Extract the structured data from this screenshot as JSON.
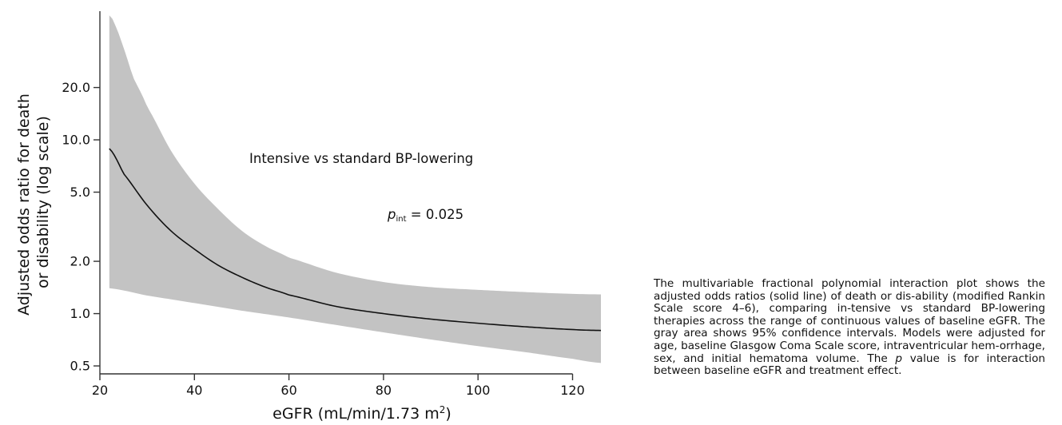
{
  "chart_data": {
    "type": "line",
    "title": "",
    "xlabel": "eGFR (mL/min/1.73 m",
    "xlabel_sup": "2",
    "xlabel_suffix": ")",
    "ylabel_lines": [
      "Adjusted odds ratio for death",
      "or disability (log scale)"
    ],
    "y_scale": "log",
    "xlim": [
      20,
      126
    ],
    "ylim": [
      0.45,
      55
    ],
    "x_ticks": [
      20,
      40,
      60,
      80,
      100,
      120
    ],
    "x_tick_labels": [
      "20",
      "40",
      "60",
      "80",
      "100",
      "120"
    ],
    "y_ticks": [
      0.5,
      1.0,
      2.0,
      5.0,
      10.0,
      20.0
    ],
    "y_tick_labels": [
      "0.5",
      "1.0",
      "2.0",
      "5.0",
      "10.0",
      "20.0"
    ],
    "grid": false,
    "series": [
      {
        "role": "point-estimate",
        "x": [
          22,
          25,
          30,
          35,
          40,
          45,
          50,
          55,
          60,
          70,
          80,
          90,
          100,
          110,
          120,
          126
        ],
        "y": [
          8.9,
          6.4,
          4.2,
          3.0,
          2.35,
          1.9,
          1.62,
          1.42,
          1.28,
          1.1,
          1.0,
          0.93,
          0.88,
          0.84,
          0.81,
          0.8
        ]
      },
      {
        "role": "ci-upper",
        "x": [
          22,
          23,
          25,
          27,
          30,
          35,
          40,
          45,
          50,
          55,
          60,
          70,
          80,
          90,
          100,
          110,
          120,
          126
        ],
        "y": [
          52,
          47,
          34,
          23,
          15.5,
          8.7,
          5.6,
          4.0,
          3.0,
          2.45,
          2.1,
          1.72,
          1.52,
          1.42,
          1.37,
          1.33,
          1.3,
          1.29
        ]
      },
      {
        "role": "ci-lower",
        "x": [
          22,
          30,
          40,
          50,
          60,
          70,
          80,
          90,
          100,
          110,
          120,
          126
        ],
        "y": [
          1.4,
          1.27,
          1.15,
          1.04,
          0.95,
          0.86,
          0.78,
          0.71,
          0.65,
          0.6,
          0.55,
          0.52
        ]
      }
    ],
    "colors": {
      "band": "#c3c3c3",
      "line": "#111111",
      "axis": "#333333"
    },
    "annotations": {
      "comparison": "Intensive vs standard BP-lowering",
      "p_symbol": "p",
      "p_subscript": "int",
      "p_value_text": " = 0.025"
    }
  },
  "caption_segments": [
    "The multivariable fractional polynomial interaction plot shows the adjusted odds ratios (solid line) of death or dis-ability (modified Rankin Scale score 4–6), comparing in-tensive vs standard BP-lowering therapies across the range of continuous values of baseline eGFR. The gray area shows 95% confidence intervals. Models were adjusted for age, baseline Glasgow Coma Scale score, intraventricular hem-orrhage, sex, and initial hematoma volume. The ",
    "p",
    " value is for interaction between baseline eGFR and treatment effect."
  ]
}
